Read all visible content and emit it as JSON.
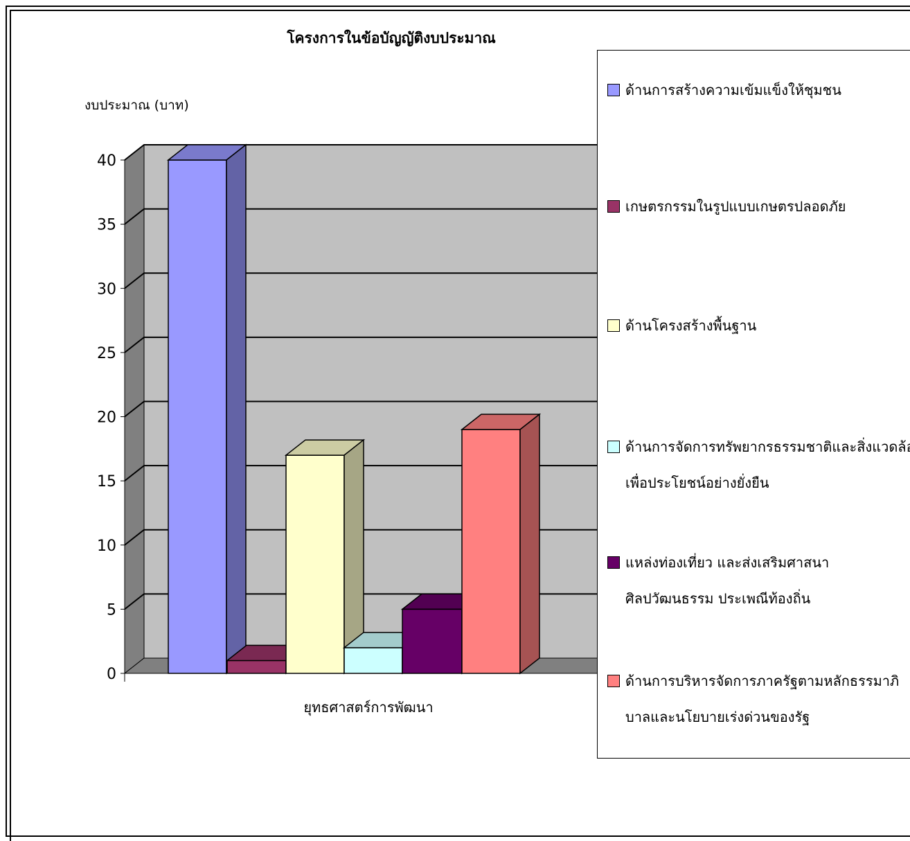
{
  "chart_data": {
    "type": "bar",
    "title": "โครงการในข้อบัญญัติงบประมาณ",
    "ylabel": "งบประมาณ (บาท)",
    "xlabel": "",
    "categories": [
      "ยุทธศาสตร์การพัฒนา"
    ],
    "ylim": [
      0,
      40
    ],
    "yticks": [
      0,
      5,
      10,
      15,
      20,
      25,
      30,
      35,
      40
    ],
    "grid": true,
    "three_d": true,
    "legend_position": "right",
    "series": [
      {
        "name": "ด้านการสร้างความเข้มแข็งให้ชุมชน",
        "values": [
          40
        ],
        "color": "#9999ff"
      },
      {
        "name": "เกษตรกรรมในรูปแบบเกษตรปลอดภัย",
        "values": [
          1
        ],
        "color": "#993366"
      },
      {
        "name": "ด้านโครงสร้างพื้นฐาน",
        "values": [
          17
        ],
        "color": "#ffffcc"
      },
      {
        "name": "ด้านการจัดการทรัพยากรธรรมชาติและสิ่งแวดล้อมเพื่อประโยชน์อย่างยั่งยืน",
        "values": [
          2
        ],
        "color": "#ccffff"
      },
      {
        "name": "แหล่งท่องเที่ยว และส่งเสริมศาสนา ศิลปวัฒนธรรม ประเพณีท้องถิ่น",
        "values": [
          5
        ],
        "color": "#660066"
      },
      {
        "name": "ด้านการบริหารจัดการภาครัฐตามหลักธรรมาภิบาลและนโยบายเร่งด่วนของรัฐ",
        "values": [
          19
        ],
        "color": "#ff8080"
      }
    ],
    "wall_color": "#c0c0c0",
    "side_wall_color": "#808080"
  },
  "legend": {
    "items": [
      {
        "lines": [
          "ด้านการสร้างความเข้มแข็งให้ชุมชน"
        ]
      },
      {
        "lines": [
          "เกษตรกรรมในรูปแบบเกษตรปลอดภัย"
        ]
      },
      {
        "lines": [
          "ด้านโครงสร้างพื้นฐาน"
        ]
      },
      {
        "lines": [
          "ด้านการจัดการทรัพยากรธรรมชาติและสิ่งแวดล้อม",
          "เพื่อประโยชน์อย่างยั่งยืน"
        ]
      },
      {
        "lines": [
          "แหล่งท่องเที่ยว และส่งเสริมศาสนา",
          "ศิลปวัฒนธรรม ประเพณีท้องถิ่น"
        ]
      },
      {
        "lines": [
          "ด้านการบริหารจัดการภาครัฐตามหลักธรรมาภิ",
          "บาลและนโยบายเร่งด่วนของรัฐ"
        ]
      }
    ]
  }
}
